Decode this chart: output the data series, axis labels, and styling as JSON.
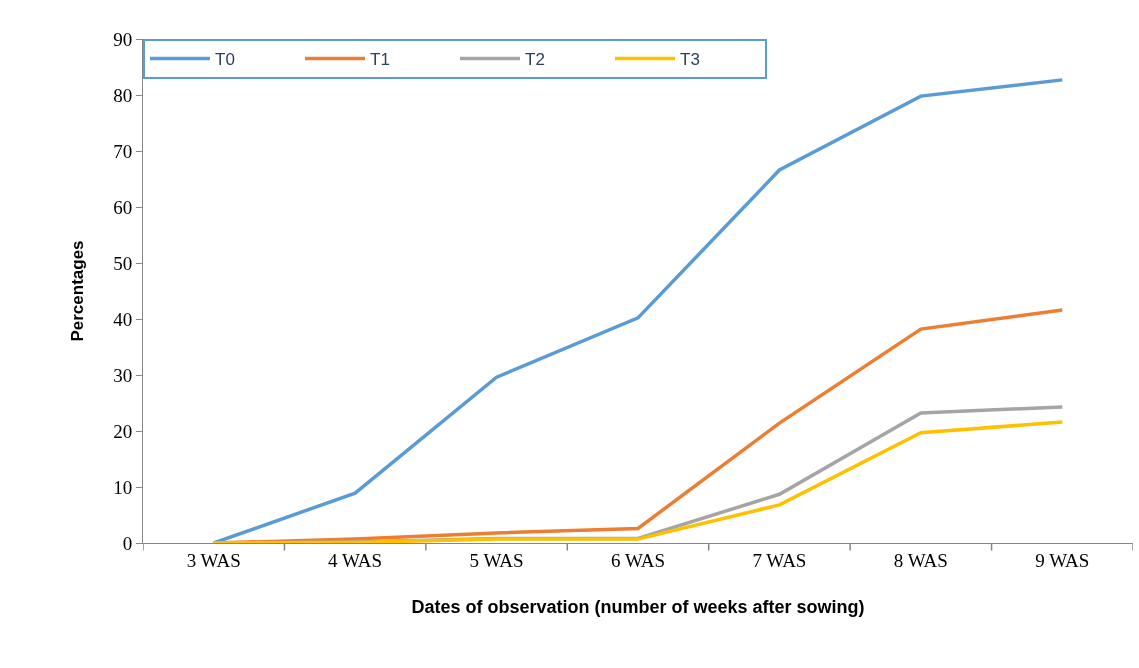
{
  "chart_data": {
    "type": "line",
    "categories": [
      "3 WAS",
      "4 WAS",
      "5 WAS",
      "6 WAS",
      "7 WAS",
      "8 WAS",
      "9 WAS"
    ],
    "series": [
      {
        "name": "T0",
        "color": "#5b9bd5",
        "values": [
          0,
          8.9,
          29.6,
          40.2,
          66.6,
          79.8,
          82.7
        ]
      },
      {
        "name": "T1",
        "color": "#ed7d31",
        "values": [
          0,
          0.7,
          1.8,
          2.6,
          21.4,
          38.2,
          41.6
        ]
      },
      {
        "name": "T2",
        "color": "#a5a5a5",
        "values": [
          0,
          0.2,
          0.8,
          0.8,
          8.7,
          23.2,
          24.3
        ]
      },
      {
        "name": "T3",
        "color": "#ffc000",
        "values": [
          0,
          0.1,
          0.7,
          0.7,
          6.8,
          19.7,
          21.6
        ]
      }
    ],
    "xlabel": "Dates of observation (number of weeks after sowing)",
    "ylabel": "Percentages",
    "ylim": [
      0,
      90
    ],
    "yticks": [
      0,
      10,
      20,
      30,
      40,
      50,
      60,
      70,
      80,
      90
    ],
    "legend": "top",
    "marker": "none",
    "line_style": "solid"
  }
}
